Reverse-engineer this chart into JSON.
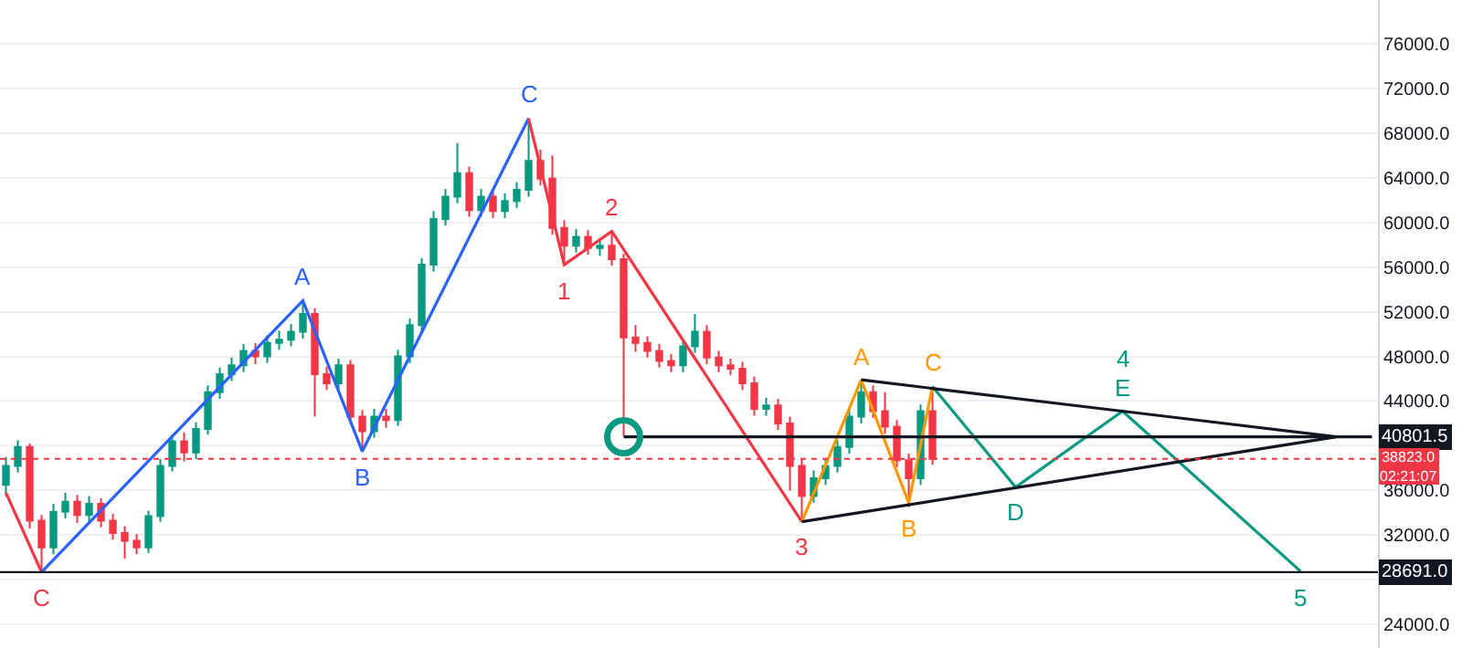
{
  "chart_data": {
    "type": "candlestick",
    "categories": [
      null,
      null,
      null,
      null,
      null,
      null,
      null,
      null,
      null,
      null,
      null,
      null,
      null,
      null,
      null,
      null,
      null,
      null,
      null,
      null,
      null,
      null,
      null,
      null,
      null,
      null,
      null,
      null,
      null,
      null,
      null,
      null,
      null,
      null,
      null,
      null,
      null,
      null,
      null,
      null,
      null,
      null,
      null,
      null,
      null,
      null,
      null,
      null,
      null,
      null,
      null,
      null,
      null,
      null,
      null,
      null,
      null,
      null,
      null,
      null,
      null,
      null,
      null,
      null,
      null,
      null,
      null,
      null,
      null,
      null,
      null,
      null,
      null,
      null,
      null,
      null,
      null,
      null,
      null,
      null,
      null,
      null,
      null,
      null,
      null,
      null,
      null,
      null,
      null,
      null,
      null,
      null,
      null,
      null,
      null,
      null,
      null,
      null,
      null,
      null,
      null,
      null,
      null,
      null,
      null,
      null,
      null,
      null,
      null,
      null,
      null,
      null,
      null,
      null,
      null,
      null
    ],
    "ohlc": [
      [
        36500,
        39000,
        35500,
        38200
      ],
      [
        38200,
        40500,
        37600,
        39900
      ],
      [
        39900,
        40200,
        32600,
        33300
      ],
      [
        33300,
        33800,
        28691,
        30900
      ],
      [
        30900,
        34800,
        30300,
        34100
      ],
      [
        34100,
        35800,
        33500,
        35000
      ],
      [
        35000,
        35600,
        33100,
        33800
      ],
      [
        33800,
        35500,
        33200,
        34800
      ],
      [
        34800,
        35300,
        32700,
        33300
      ],
      [
        33300,
        33900,
        31600,
        32200
      ],
      [
        32200,
        32800,
        29900,
        31500
      ],
      [
        31500,
        32100,
        30300,
        30900
      ],
      [
        30900,
        34200,
        30400,
        33700
      ],
      [
        33700,
        38800,
        33200,
        38200
      ],
      [
        38200,
        41000,
        37700,
        40400
      ],
      [
        40400,
        41200,
        38600,
        39400
      ],
      [
        39400,
        42100,
        38800,
        41500
      ],
      [
        41500,
        45400,
        41000,
        44800
      ],
      [
        44800,
        47000,
        44200,
        46400
      ],
      [
        46400,
        47900,
        45800,
        47200
      ],
      [
        47200,
        49100,
        46600,
        48500
      ],
      [
        48500,
        49200,
        47300,
        48000
      ],
      [
        48000,
        49900,
        47400,
        49200
      ],
      [
        49200,
        50300,
        48600,
        49500
      ],
      [
        49500,
        50900,
        48900,
        50200
      ],
      [
        50200,
        53000,
        49600,
        51800
      ],
      [
        51800,
        52300,
        42600,
        46400
      ],
      [
        46400,
        47100,
        45000,
        45600
      ],
      [
        45600,
        47800,
        45000,
        47200
      ],
      [
        47200,
        47700,
        42000,
        42600
      ],
      [
        42600,
        43200,
        39500,
        41300
      ],
      [
        41300,
        43300,
        40700,
        42600
      ],
      [
        42600,
        43300,
        41600,
        42300
      ],
      [
        42300,
        48600,
        41800,
        48000
      ],
      [
        48000,
        51400,
        47400,
        50800
      ],
      [
        50800,
        56800,
        50200,
        56200
      ],
      [
        56200,
        61000,
        55600,
        60300
      ],
      [
        60300,
        63000,
        59700,
        62300
      ],
      [
        62300,
        67100,
        61700,
        64400
      ],
      [
        64400,
        65000,
        60500,
        61100
      ],
      [
        61100,
        63000,
        60500,
        62300
      ],
      [
        62300,
        62900,
        60400,
        61000
      ],
      [
        61000,
        62600,
        60400,
        61900
      ],
      [
        61900,
        63600,
        61300,
        62900
      ],
      [
        62900,
        69300,
        62300,
        65500
      ],
      [
        65500,
        66500,
        63300,
        63900
      ],
      [
        63900,
        66000,
        58900,
        59500
      ],
      [
        59500,
        60200,
        56200,
        57900
      ],
      [
        57900,
        59400,
        57300,
        58700
      ],
      [
        58700,
        59300,
        57100,
        57700
      ],
      [
        57700,
        58600,
        57000,
        57900
      ],
      [
        57900,
        59200,
        56100,
        56700
      ],
      [
        56700,
        57200,
        40900,
        49700
      ],
      [
        49700,
        50800,
        48400,
        49200
      ],
      [
        49200,
        49800,
        47900,
        48500
      ],
      [
        48500,
        49100,
        47000,
        47600
      ],
      [
        47600,
        48200,
        46600,
        47200
      ],
      [
        47200,
        49500,
        46600,
        48900
      ],
      [
        48900,
        51800,
        48300,
        50200
      ],
      [
        50200,
        50800,
        47300,
        47900
      ],
      [
        47900,
        48500,
        46600,
        47200
      ],
      [
        47200,
        47800,
        46300,
        46900
      ],
      [
        46900,
        47500,
        45000,
        45600
      ],
      [
        45600,
        46200,
        42700,
        43300
      ],
      [
        43300,
        44300,
        42700,
        43600
      ],
      [
        43600,
        44200,
        41400,
        42000
      ],
      [
        42000,
        42600,
        36000,
        38200
      ],
      [
        38200,
        38800,
        33200,
        35500
      ],
      [
        35500,
        37800,
        34900,
        37100
      ],
      [
        37100,
        38900,
        36500,
        38200
      ],
      [
        38200,
        40500,
        37600,
        39900
      ],
      [
        39900,
        43300,
        39300,
        42600
      ],
      [
        42600,
        45900,
        42000,
        44800
      ],
      [
        44800,
        45400,
        42500,
        43100
      ],
      [
        43100,
        44800,
        41100,
        41700
      ],
      [
        41700,
        42300,
        38100,
        38700
      ],
      [
        38700,
        39300,
        34500,
        37100
      ],
      [
        37100,
        43700,
        36500,
        43100
      ],
      [
        43100,
        45300,
        38300,
        38823
      ],
      null,
      null,
      null,
      null,
      null,
      null,
      null,
      null,
      null,
      null,
      null,
      null,
      null,
      null,
      null,
      null,
      null,
      null,
      null,
      null,
      null,
      null,
      null,
      null,
      null,
      null,
      null,
      null,
      null,
      null,
      null,
      null,
      null,
      null,
      null,
      null,
      null
    ],
    "series": [
      {
        "type": "line",
        "color": "#f23645",
        "values": [
          35800,
          null,
          null,
          28691,
          null,
          null,
          null,
          null,
          null,
          null,
          null,
          null,
          null,
          null,
          null,
          null,
          null,
          null,
          null,
          null,
          null,
          null,
          null,
          null,
          null,
          null,
          null,
          null,
          null,
          null,
          null,
          null,
          null,
          null,
          null,
          null,
          null,
          null,
          null,
          null,
          null,
          null,
          null,
          null,
          null,
          null,
          null,
          null,
          null,
          null,
          null,
          null,
          null,
          null,
          null,
          null,
          null,
          null,
          null,
          null,
          null,
          null,
          null,
          null,
          null,
          null,
          null,
          null,
          null,
          null,
          null,
          null,
          null,
          null,
          null,
          null,
          null,
          null,
          null,
          null,
          null,
          null,
          null,
          null,
          null,
          null,
          null,
          null,
          null,
          null,
          null,
          null,
          null,
          null,
          null,
          null,
          null,
          null,
          null,
          null,
          null,
          null,
          null,
          null,
          null,
          null,
          null,
          null,
          null,
          null,
          null,
          null,
          null,
          null,
          null,
          null
        ]
      },
      {
        "type": "line",
        "color": "#2962ff",
        "values": [
          null,
          null,
          null,
          28691,
          null,
          null,
          null,
          null,
          null,
          null,
          null,
          null,
          null,
          null,
          null,
          null,
          null,
          null,
          null,
          null,
          null,
          null,
          null,
          null,
          null,
          53000,
          null,
          null,
          null,
          null,
          39500,
          null,
          null,
          null,
          null,
          null,
          null,
          null,
          null,
          null,
          null,
          null,
          null,
          null,
          69300,
          null,
          null,
          null,
          null,
          null,
          null,
          null,
          null,
          null,
          null,
          null,
          null,
          null,
          null,
          null,
          null,
          null,
          null,
          null,
          null,
          null,
          null,
          null,
          null,
          null,
          null,
          null,
          null,
          null,
          null,
          null,
          null,
          null,
          null,
          null,
          null,
          null,
          null,
          null,
          null,
          null,
          null,
          null,
          null,
          null,
          null,
          null,
          null,
          null,
          null,
          null,
          null,
          null,
          null,
          null,
          null,
          null,
          null,
          null,
          null,
          null,
          null,
          null,
          null,
          null,
          null,
          null,
          null,
          null,
          null,
          null
        ]
      },
      {
        "type": "line",
        "color": "#f23645",
        "values": [
          null,
          null,
          null,
          null,
          null,
          null,
          null,
          null,
          null,
          null,
          null,
          null,
          null,
          null,
          null,
          null,
          null,
          null,
          null,
          null,
          null,
          null,
          null,
          null,
          null,
          null,
          null,
          null,
          null,
          null,
          null,
          null,
          null,
          null,
          null,
          null,
          null,
          null,
          null,
          null,
          null,
          null,
          null,
          null,
          69300,
          null,
          null,
          56200,
          null,
          null,
          null,
          59200,
          null,
          null,
          null,
          null,
          null,
          null,
          null,
          null,
          null,
          null,
          null,
          null,
          null,
          null,
          null,
          33200,
          null,
          null,
          null,
          null,
          null,
          null,
          null,
          null,
          null,
          null,
          null,
          null,
          null,
          null,
          null,
          null,
          null,
          null,
          null,
          null,
          null,
          null,
          null,
          null,
          null,
          null,
          null,
          null,
          null,
          null,
          null,
          null,
          null,
          null,
          null,
          null,
          null,
          null,
          null,
          null,
          null,
          null,
          null,
          null,
          null,
          null,
          null,
          null
        ]
      },
      {
        "type": "line",
        "color": "#ff9800",
        "values": [
          null,
          null,
          null,
          null,
          null,
          null,
          null,
          null,
          null,
          null,
          null,
          null,
          null,
          null,
          null,
          null,
          null,
          null,
          null,
          null,
          null,
          null,
          null,
          null,
          null,
          null,
          null,
          null,
          null,
          null,
          null,
          null,
          null,
          null,
          null,
          null,
          null,
          null,
          null,
          null,
          null,
          null,
          null,
          null,
          null,
          null,
          null,
          null,
          null,
          null,
          null,
          null,
          null,
          null,
          null,
          null,
          null,
          null,
          null,
          null,
          null,
          null,
          null,
          null,
          null,
          null,
          null,
          33200,
          null,
          null,
          null,
          null,
          45900,
          null,
          null,
          null,
          34900,
          null,
          45300,
          null,
          null,
          null,
          null,
          null,
          null,
          null,
          null,
          null,
          null,
          null,
          null,
          null,
          null,
          null,
          null,
          null,
          null,
          null,
          null,
          null,
          null,
          null,
          null,
          null,
          null,
          null,
          null,
          null,
          null,
          null,
          null,
          null,
          null,
          null,
          null,
          null
        ]
      },
      {
        "type": "line",
        "color": "#089981",
        "values": [
          null,
          null,
          null,
          null,
          null,
          null,
          null,
          null,
          null,
          null,
          null,
          null,
          null,
          null,
          null,
          null,
          null,
          null,
          null,
          null,
          null,
          null,
          null,
          null,
          null,
          null,
          null,
          null,
          null,
          null,
          null,
          null,
          null,
          null,
          null,
          null,
          null,
          null,
          null,
          null,
          null,
          null,
          null,
          null,
          null,
          null,
          null,
          null,
          null,
          null,
          null,
          null,
          null,
          null,
          null,
          null,
          null,
          null,
          null,
          null,
          null,
          null,
          null,
          null,
          null,
          null,
          null,
          null,
          null,
          null,
          null,
          null,
          null,
          null,
          null,
          null,
          null,
          null,
          45300,
          null,
          null,
          null,
          null,
          null,
          null,
          36300,
          null,
          null,
          null,
          null,
          null,
          null,
          null,
          null,
          43100,
          null,
          null,
          null,
          null,
          null,
          null,
          null,
          null,
          null,
          null,
          null,
          null,
          null,
          null,
          28750,
          null,
          null,
          null,
          null,
          null,
          null
        ]
      },
      {
        "type": "line",
        "color": "#131722",
        "values": [
          null,
          null,
          null,
          null,
          null,
          null,
          null,
          null,
          null,
          null,
          null,
          null,
          null,
          null,
          null,
          null,
          null,
          null,
          null,
          null,
          null,
          null,
          null,
          null,
          null,
          null,
          null,
          null,
          null,
          null,
          null,
          null,
          null,
          null,
          null,
          null,
          null,
          null,
          null,
          null,
          null,
          null,
          null,
          null,
          null,
          null,
          null,
          null,
          null,
          null,
          null,
          null,
          null,
          null,
          null,
          null,
          null,
          null,
          null,
          null,
          null,
          null,
          null,
          null,
          null,
          null,
          null,
          null,
          null,
          null,
          null,
          null,
          45900,
          null,
          null,
          null,
          null,
          null,
          null,
          null,
          null,
          null,
          null,
          null,
          null,
          null,
          null,
          null,
          null,
          null,
          null,
          null,
          null,
          null,
          null,
          null,
          null,
          null,
          null,
          null,
          null,
          null,
          null,
          null,
          null,
          null,
          null,
          null,
          null,
          null,
          null,
          null,
          40801.5,
          null,
          null,
          null
        ]
      },
      {
        "type": "line",
        "color": "#131722",
        "values": [
          null,
          null,
          null,
          null,
          null,
          null,
          null,
          null,
          null,
          null,
          null,
          null,
          null,
          null,
          null,
          null,
          null,
          null,
          null,
          null,
          null,
          null,
          null,
          null,
          null,
          null,
          null,
          null,
          null,
          null,
          null,
          null,
          null,
          null,
          null,
          null,
          null,
          null,
          null,
          null,
          null,
          null,
          null,
          null,
          null,
          null,
          null,
          null,
          null,
          null,
          null,
          null,
          null,
          null,
          null,
          null,
          null,
          null,
          null,
          null,
          null,
          null,
          null,
          null,
          null,
          null,
          null,
          33200,
          null,
          null,
          null,
          null,
          null,
          null,
          null,
          null,
          null,
          null,
          null,
          null,
          null,
          null,
          null,
          null,
          null,
          null,
          null,
          null,
          null,
          null,
          null,
          null,
          null,
          null,
          null,
          null,
          null,
          null,
          null,
          null,
          null,
          null,
          null,
          null,
          null,
          null,
          null,
          null,
          null,
          null,
          null,
          null,
          40801.5,
          null,
          null,
          null
        ]
      },
      {
        "type": "line",
        "color": "#131722",
        "name": "40801.5",
        "values": [
          null,
          null,
          null,
          null,
          null,
          null,
          null,
          null,
          null,
          null,
          null,
          null,
          null,
          null,
          null,
          null,
          null,
          null,
          null,
          null,
          null,
          null,
          null,
          null,
          null,
          null,
          null,
          null,
          null,
          null,
          null,
          null,
          null,
          null,
          null,
          null,
          null,
          null,
          null,
          null,
          null,
          null,
          null,
          null,
          null,
          null,
          null,
          null,
          null,
          null,
          null,
          null,
          40801.5,
          null,
          null,
          null,
          null,
          null,
          null,
          null,
          null,
          null,
          null,
          null,
          null,
          null,
          null,
          null,
          null,
          null,
          null,
          null,
          null,
          null,
          null,
          null,
          null,
          null,
          null,
          null,
          null,
          null,
          null,
          null,
          null,
          null,
          null,
          null,
          null,
          null,
          null,
          null,
          null,
          null,
          null,
          null,
          null,
          null,
          null,
          null,
          null,
          null,
          null,
          null,
          null,
          null,
          null,
          null,
          null,
          null,
          null,
          null,
          null,
          null,
          null,
          40801.5
        ]
      },
      {
        "type": "scatter",
        "marker": "circle",
        "color": "#089981",
        "values": [
          null,
          null,
          null,
          null,
          null,
          null,
          null,
          null,
          null,
          null,
          null,
          null,
          null,
          null,
          null,
          null,
          null,
          null,
          null,
          null,
          null,
          null,
          null,
          null,
          null,
          null,
          null,
          null,
          null,
          null,
          null,
          null,
          null,
          null,
          null,
          null,
          null,
          null,
          null,
          null,
          null,
          null,
          null,
          null,
          null,
          null,
          null,
          null,
          null,
          null,
          null,
          null,
          40801.5,
          null,
          null,
          null,
          null,
          null,
          null,
          null,
          null,
          null,
          null,
          null,
          null,
          null,
          null,
          null,
          null,
          null,
          null,
          null,
          null,
          null,
          null,
          null,
          null,
          null,
          null,
          null,
          null,
          null,
          null,
          null,
          null,
          null,
          null,
          null,
          null,
          null,
          null,
          null,
          null,
          null,
          null,
          null,
          null,
          null,
          null,
          null,
          null,
          null,
          null,
          null,
          null,
          null,
          null,
          null,
          null,
          null,
          null,
          null,
          null,
          null,
          null,
          null
        ]
      }
    ],
    "ylim": [
      21900,
      79900
    ],
    "yticks": [
      {
        "value": 24000,
        "label": "24000.0"
      },
      {
        "value": 28000,
        "label": null
      },
      {
        "value": 32000,
        "label": "32000.0"
      },
      {
        "value": 36000,
        "label": "36000.0"
      },
      {
        "value": 40000,
        "label": null
      },
      {
        "value": 44000,
        "label": "44000.0"
      },
      {
        "value": 48000,
        "label": "48000.0"
      },
      {
        "value": 52000,
        "label": "52000.0"
      },
      {
        "value": 56000,
        "label": "56000.0"
      },
      {
        "value": 60000,
        "label": "60000.0"
      },
      {
        "value": 64000,
        "label": "64000.0"
      },
      {
        "value": 68000,
        "label": "68000.0"
      },
      {
        "value": 72000,
        "label": "72000.0"
      },
      {
        "value": 76000,
        "label": "76000.0"
      }
    ],
    "ref_lines": [
      {
        "axis": "y",
        "value": 28691,
        "label": "28691.0",
        "color": "#131722",
        "line_style": "solid"
      },
      {
        "axis": "y",
        "value": 38823,
        "label": "38823.0\n02:21:07",
        "color": "#f23645",
        "line_style": "dotted"
      }
    ],
    "annotations": [
      {
        "text": "C",
        "y": 28691
      },
      {
        "text": "A",
        "y": 53000
      },
      {
        "text": "B",
        "y": 39500
      },
      {
        "text": "C",
        "y": 69300
      },
      {
        "text": "1",
        "y": 56200
      },
      {
        "text": "2",
        "y": 59200
      },
      {
        "text": "3",
        "y": 33200
      },
      {
        "text": "A",
        "y": 45900
      },
      {
        "text": "B",
        "y": 34900
      },
      {
        "text": "C",
        "y": 45300
      },
      {
        "text": "D",
        "y": 36300
      },
      {
        "text": "E",
        "y": 43100
      },
      {
        "text": "4",
        "y": 43100
      },
      {
        "text": "5",
        "y": 28750
      }
    ],
    "grid": "y",
    "tick_labels": "y"
  }
}
